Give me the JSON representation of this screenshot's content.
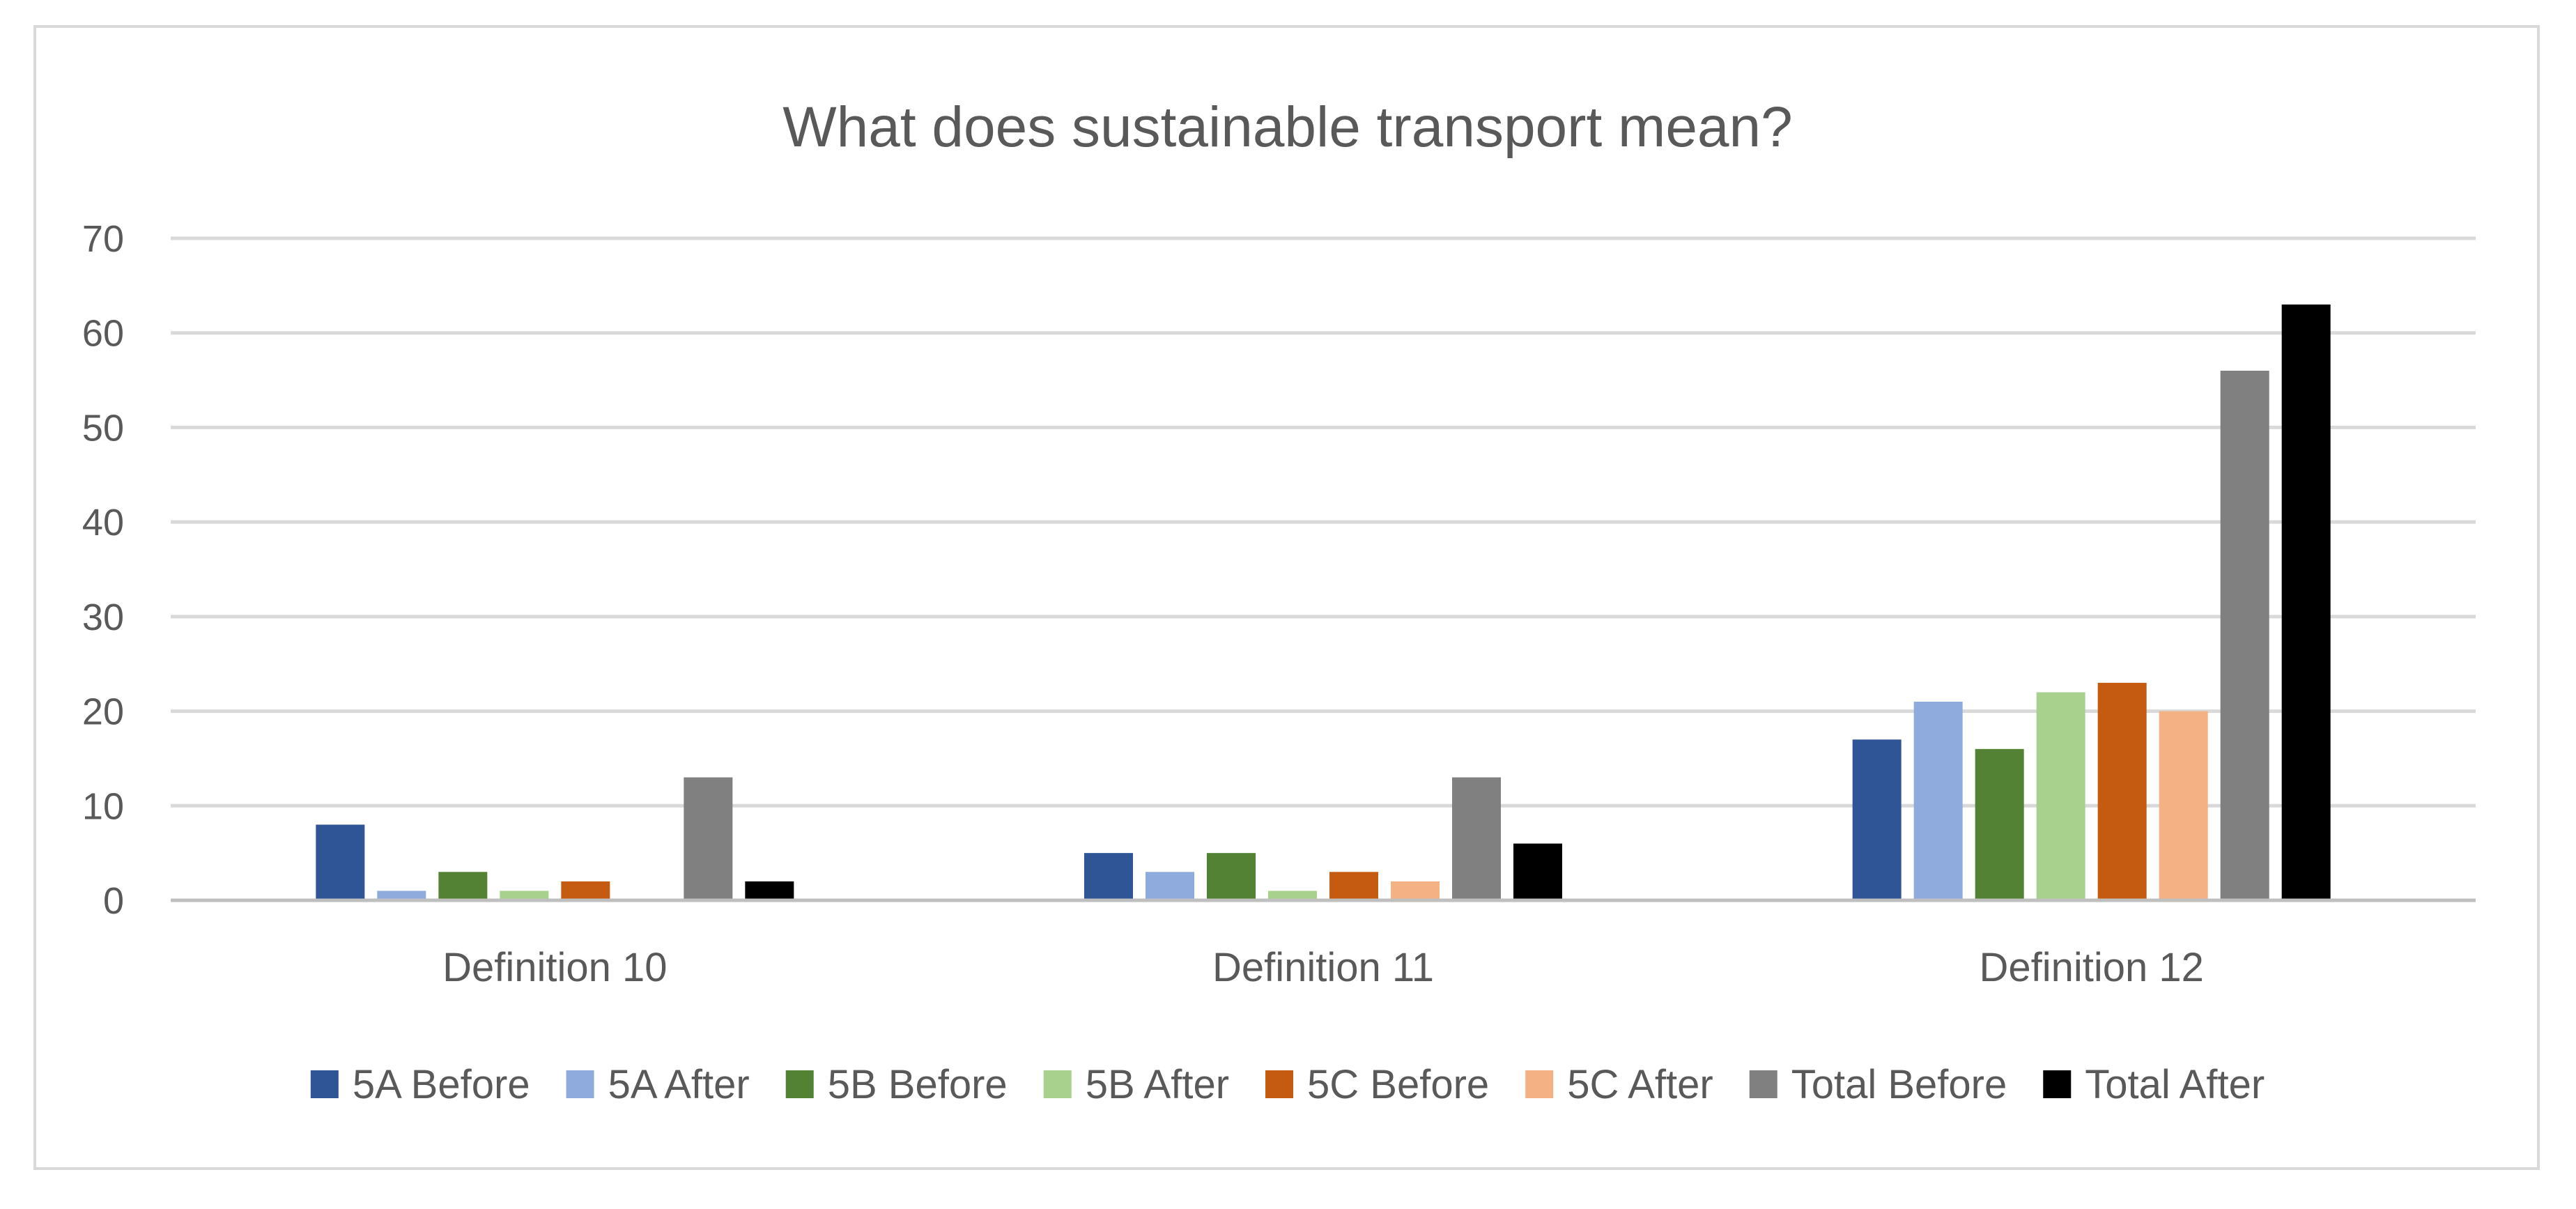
{
  "chart_data": {
    "type": "bar",
    "title": "What does sustainable transport mean?",
    "xlabel": "",
    "ylabel": "",
    "ylim": [
      0,
      70
    ],
    "yticks": [
      0,
      10,
      20,
      30,
      40,
      50,
      60,
      70
    ],
    "grid": true,
    "legend_position": "bottom",
    "categories": [
      "Definition 10",
      "Definition 11",
      "Definition 12"
    ],
    "series": [
      {
        "name": "5A Before",
        "color": "#2f5597",
        "values": [
          8,
          5,
          17
        ]
      },
      {
        "name": "5A After",
        "color": "#8faadc",
        "values": [
          1,
          3,
          21
        ]
      },
      {
        "name": "5B Before",
        "color": "#548235",
        "values": [
          3,
          5,
          16
        ]
      },
      {
        "name": "5B After",
        "color": "#a9d18e",
        "values": [
          1,
          1,
          22
        ]
      },
      {
        "name": "5C Before",
        "color": "#c55a11",
        "values": [
          2,
          3,
          23
        ]
      },
      {
        "name": "5C After",
        "color": "#f4b183",
        "values": [
          0,
          2,
          20
        ]
      },
      {
        "name": "Total Before",
        "color": "#808080",
        "values": [
          13,
          13,
          56
        ]
      },
      {
        "name": "Total After",
        "color": "#000000",
        "values": [
          2,
          6,
          63
        ]
      }
    ]
  }
}
